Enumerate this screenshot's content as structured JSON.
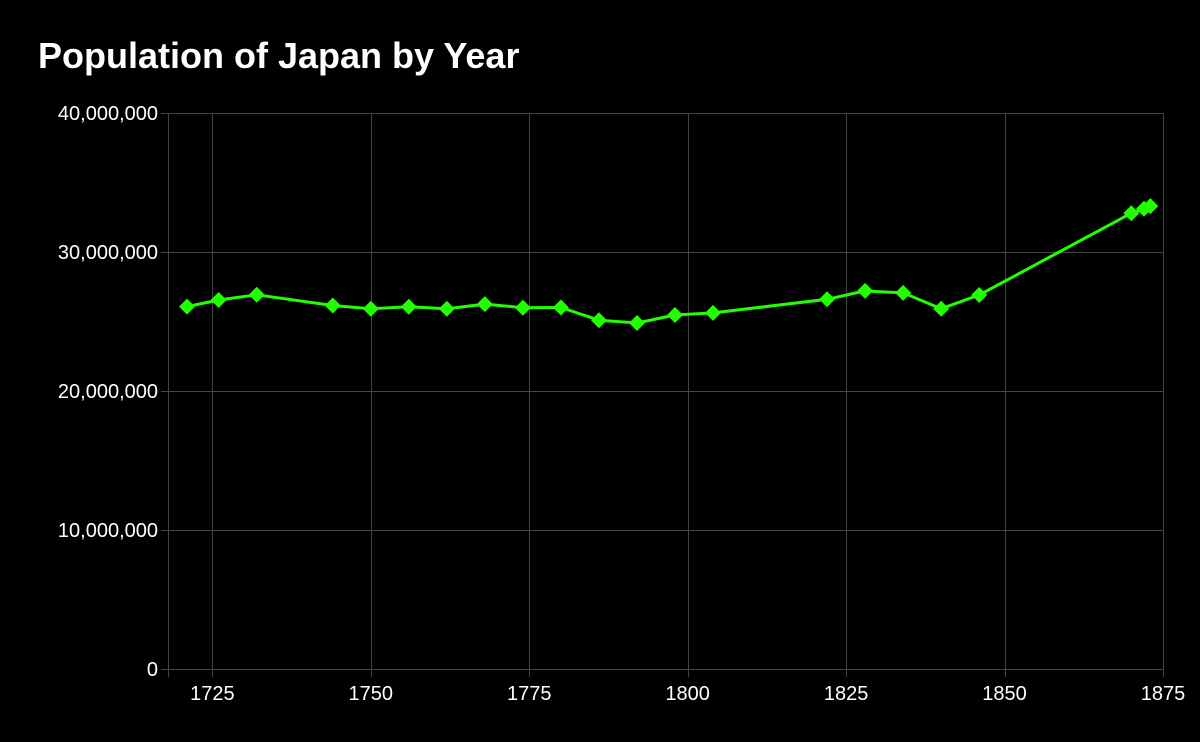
{
  "chart_data": {
    "type": "line",
    "title": "Population of Japan by Year",
    "xlabel": "",
    "ylabel": "",
    "xlim": [
      1718,
      1875
    ],
    "ylim": [
      0,
      40000000
    ],
    "x_ticks": [
      1725,
      1750,
      1775,
      1800,
      1825,
      1850,
      1875
    ],
    "x_tick_labels": [
      "1725",
      "1750",
      "1775",
      "1800",
      "1825",
      "1850",
      "1875"
    ],
    "y_ticks": [
      0,
      10000000,
      20000000,
      30000000,
      40000000
    ],
    "y_tick_labels": [
      "0",
      "10,000,000",
      "20,000,000",
      "30,000,000",
      "40,000,000"
    ],
    "grid": true,
    "legend": false,
    "series": [
      {
        "color": "#22ff00",
        "marker": "diamond",
        "points": [
          [
            1721,
            26070000
          ],
          [
            1726,
            26550000
          ],
          [
            1732,
            26920000
          ],
          [
            1744,
            26150000
          ],
          [
            1750,
            25920000
          ],
          [
            1756,
            26060000
          ],
          [
            1762,
            25920000
          ],
          [
            1768,
            26250000
          ],
          [
            1774,
            25990000
          ],
          [
            1780,
            26010000
          ],
          [
            1786,
            25090000
          ],
          [
            1792,
            24890000
          ],
          [
            1798,
            25470000
          ],
          [
            1804,
            25620000
          ],
          [
            1822,
            26600000
          ],
          [
            1828,
            27200000
          ],
          [
            1834,
            27060000
          ],
          [
            1840,
            25920000
          ],
          [
            1846,
            26910000
          ],
          [
            1870,
            32790000
          ],
          [
            1872,
            33110000
          ],
          [
            1873,
            33300000
          ]
        ]
      }
    ]
  }
}
